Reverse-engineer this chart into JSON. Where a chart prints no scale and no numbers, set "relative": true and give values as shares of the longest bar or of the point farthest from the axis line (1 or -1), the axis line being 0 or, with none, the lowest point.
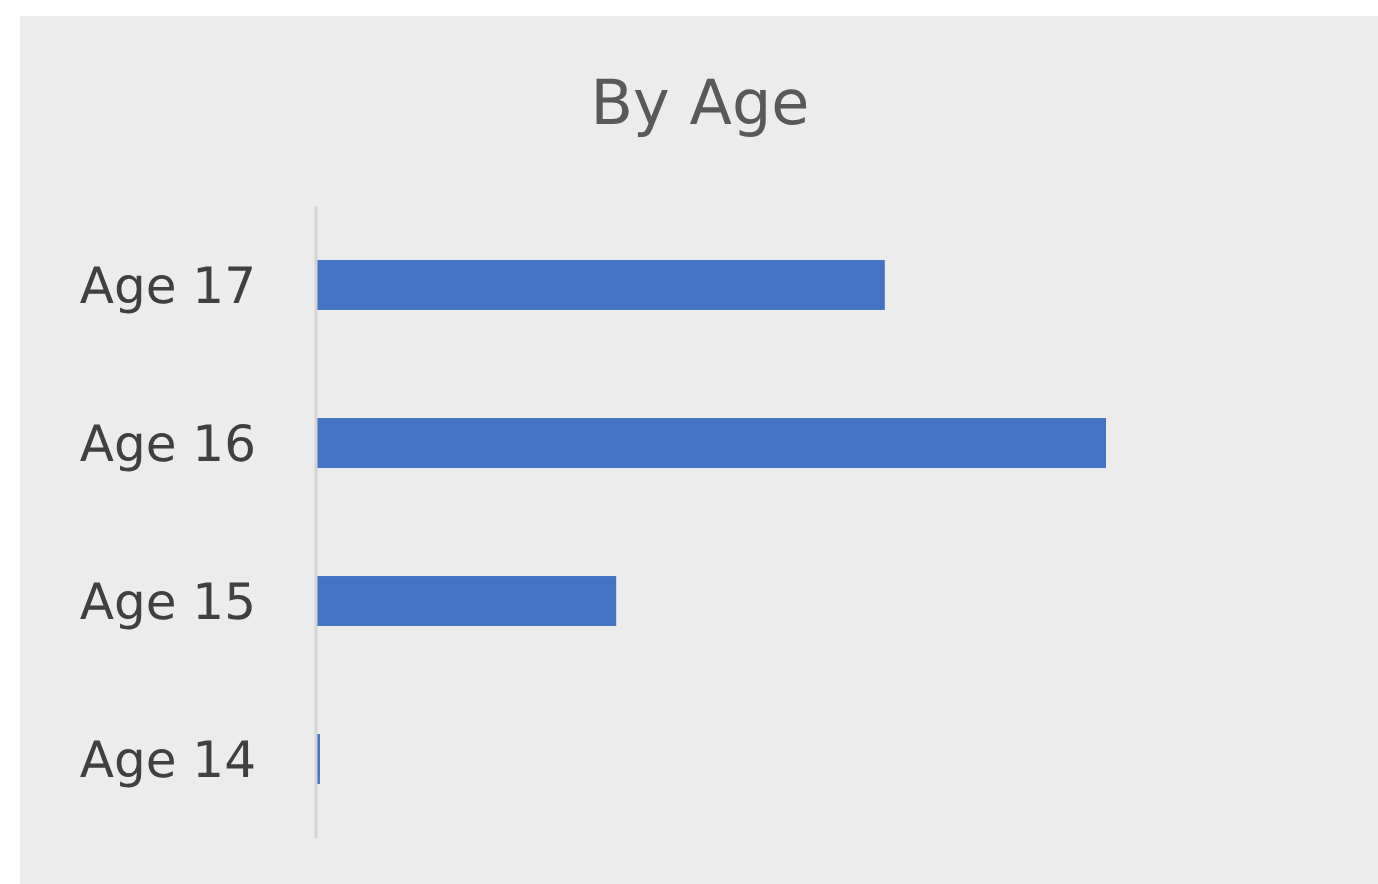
{
  "chart_data": {
    "type": "bar",
    "title": "By Age",
    "orientation": "horizontal",
    "relative": true,
    "categories": [
      "Age 17",
      "Age 16",
      "Age 15",
      "Age 14"
    ],
    "values": [
      0.72,
      1,
      0.38,
      0.005
    ],
    "color": "#4472c4"
  }
}
